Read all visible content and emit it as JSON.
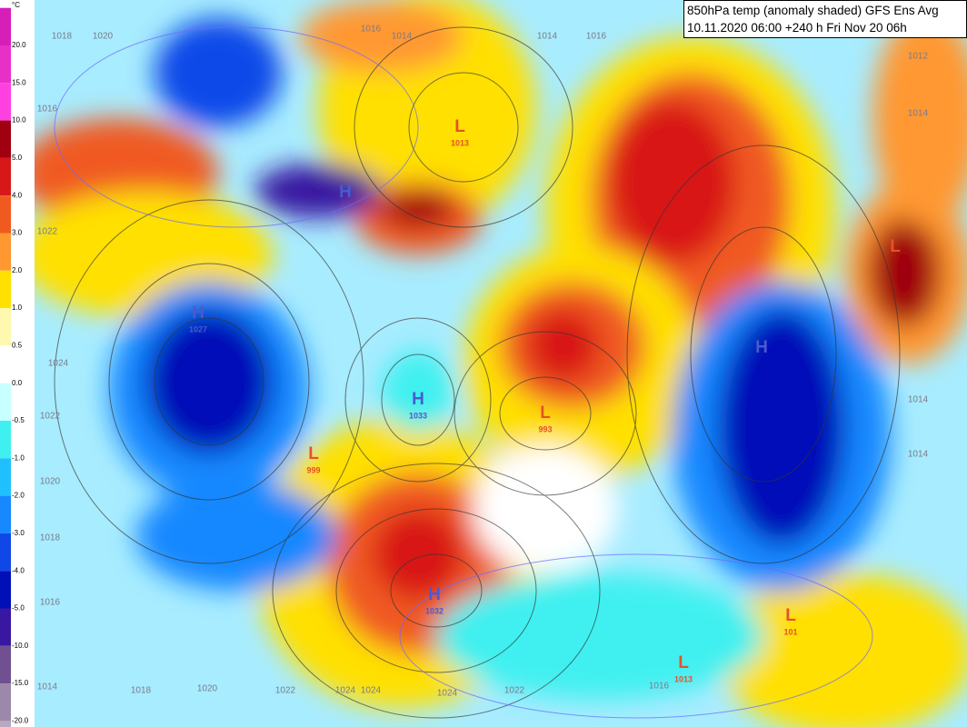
{
  "header": {
    "title": "850hPa temp (anomaly shaded) GFS Ens Avg",
    "subtitle": "10.11.2020 06:00 +240 h Fri Nov 20 06h"
  },
  "colorbar": {
    "unit": "°C",
    "labels": [
      "20.0",
      "15.0",
      "10.0",
      "5.0",
      "4.0",
      "3.0",
      "2.0",
      "1.0",
      "0.5",
      "0.0",
      "-0.5",
      "-1.0",
      "-2.0",
      "-3.0",
      "-4.0",
      "-5.0",
      "-10.0",
      "-15.0",
      "-20.0"
    ],
    "colors": [
      "#d81eb8",
      "#e830c8",
      "#ff40e0",
      "#a00010",
      "#d81818",
      "#f05a20",
      "#ff9830",
      "#ffe000",
      "#fff8b0",
      "#ffffff",
      "#c8ffff",
      "#40f0f0",
      "#20c0ff",
      "#1888ff",
      "#1048e8",
      "#0010b8",
      "#3818a0",
      "#705090",
      "#9c88a8",
      "#b8a8c0"
    ]
  },
  "centers": [
    {
      "letter": "H",
      "value": null
    },
    {
      "letter": "L",
      "value": "1013"
    },
    {
      "letter": "H",
      "value": "1027"
    },
    {
      "letter": "H",
      "value": "1033"
    },
    {
      "letter": "L",
      "value": "999"
    },
    {
      "letter": "L",
      "value": "993"
    },
    {
      "letter": "H",
      "value": "1032"
    },
    {
      "letter": "H",
      "value": null
    },
    {
      "letter": "L",
      "value": "101"
    },
    {
      "letter": "L",
      "value": "1013"
    },
    {
      "letter": "L",
      "value": null
    }
  ],
  "isobar_labels": [
    "1018",
    "1020",
    "1016",
    "1014",
    "1014",
    "1016",
    "1012",
    "1016",
    "1014",
    "1022",
    "1024",
    "1022",
    "1020",
    "1018",
    "1016",
    "1014",
    "1018",
    "1020",
    "1022",
    "1024",
    "1024",
    "1024",
    "1022",
    "1016",
    "1014",
    "1014"
  ]
}
